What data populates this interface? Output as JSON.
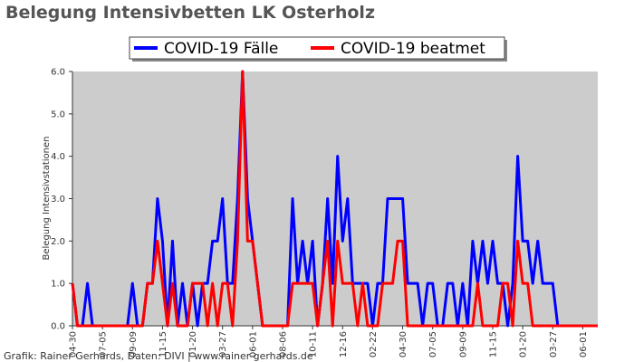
{
  "chart_data": {
    "type": "line",
    "title": "Belegung Intensivbetten LK Osterholz",
    "y_label": "Belegung Intensivstationen",
    "footer": "Grafik: Rainer Gerhards, Daten: DIVI | www.rainer-gerhards.de",
    "categories": [
      "04-30",
      null,
      null,
      null,
      null,
      null,
      "07-05",
      null,
      null,
      null,
      null,
      null,
      "09-09",
      null,
      null,
      null,
      null,
      null,
      "11-15",
      null,
      null,
      null,
      null,
      null,
      "01-20",
      null,
      null,
      null,
      null,
      null,
      "03-27",
      null,
      null,
      null,
      null,
      null,
      "06-01",
      null,
      null,
      null,
      null,
      null,
      "08-06",
      null,
      null,
      null,
      null,
      null,
      "10-11",
      null,
      null,
      null,
      null,
      null,
      "12-16",
      null,
      null,
      null,
      null,
      null,
      "02-22",
      null,
      null,
      null,
      null,
      null,
      "04-30",
      null,
      null,
      null,
      null,
      null,
      "07-05",
      null,
      null,
      null,
      null,
      null,
      "09-09",
      null,
      null,
      null,
      null,
      null,
      "11-15",
      null,
      null,
      null,
      null,
      null,
      "01-20",
      null,
      null,
      null,
      null,
      null,
      "03-27",
      null,
      null,
      null,
      null,
      null,
      "06-01",
      null,
      null,
      null
    ],
    "series": [
      {
        "name": "COVID-19 Fälle",
        "color": "#0000ff",
        "values": [
          1,
          0,
          0,
          1,
          0,
          0,
          0,
          0,
          0,
          0,
          0,
          0,
          1,
          0,
          0,
          1,
          1,
          3,
          2,
          0,
          2,
          0,
          1,
          0,
          1,
          0,
          1,
          1,
          2,
          2,
          3,
          1,
          1,
          3,
          6,
          3,
          2,
          1,
          0,
          0,
          0,
          0,
          0,
          0,
          3,
          1,
          2,
          1,
          2,
          0,
          1,
          3,
          1,
          4,
          2,
          3,
          1,
          1,
          1,
          1,
          0,
          1,
          1,
          3,
          3,
          3,
          3,
          1,
          1,
          1,
          0,
          1,
          1,
          0,
          0,
          1,
          1,
          0,
          1,
          0,
          2,
          1,
          2,
          1,
          2,
          1,
          1,
          0,
          1,
          4,
          2,
          2,
          1,
          2,
          1,
          1,
          1,
          0,
          0,
          0,
          0,
          0,
          0,
          0,
          0,
          0
        ]
      },
      {
        "name": "COVID-19 beatmet",
        "color": "#ff0000",
        "values": [
          1,
          0,
          0,
          0,
          0,
          0,
          0,
          0,
          0,
          0,
          0,
          0,
          0,
          0,
          0,
          1,
          1,
          2,
          1,
          0,
          1,
          0,
          0,
          0,
          1,
          1,
          1,
          0,
          1,
          0,
          1,
          1,
          0,
          2,
          6,
          2,
          2,
          1,
          0,
          0,
          0,
          0,
          0,
          0,
          1,
          1,
          1,
          1,
          1,
          0,
          1,
          2,
          0,
          2,
          1,
          1,
          1,
          0,
          1,
          0,
          0,
          0,
          1,
          1,
          1,
          2,
          2,
          0,
          0,
          0,
          0,
          0,
          0,
          0,
          0,
          0,
          0,
          0,
          0,
          0,
          0,
          1,
          0,
          0,
          0,
          0,
          1,
          1,
          0,
          2,
          1,
          1,
          0,
          0,
          0,
          0,
          0,
          0,
          0,
          0,
          0,
          0,
          0,
          0,
          0,
          0
        ]
      }
    ],
    "ylim": [
      0,
      6
    ],
    "yticks": [
      {
        "value": 0,
        "label": "0.0"
      },
      {
        "value": 1,
        "label": "1.0"
      },
      {
        "value": 2,
        "label": "2.0"
      },
      {
        "value": 3,
        "label": "3.0"
      },
      {
        "value": 4,
        "label": "4.0"
      },
      {
        "value": 5,
        "label": "5.0"
      },
      {
        "value": 6,
        "label": "6.0"
      }
    ],
    "plot_background": "#cccccc"
  }
}
